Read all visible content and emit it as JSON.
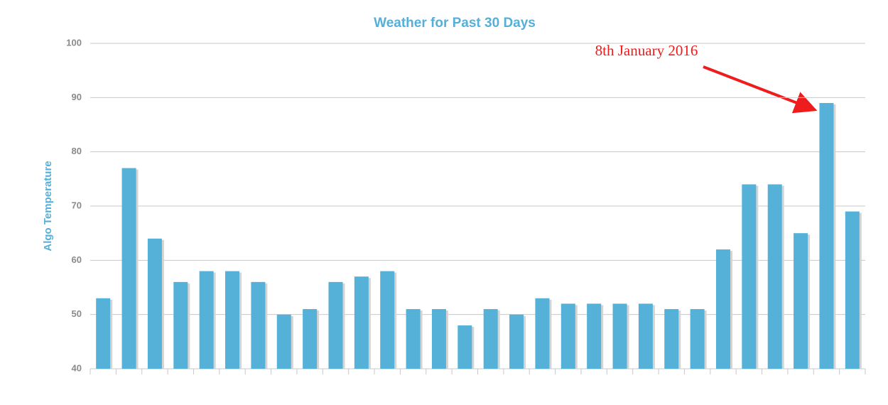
{
  "chart_data": {
    "type": "bar",
    "title": "Weather for Past 30 Days",
    "y_label": "Algo Temperature",
    "annotation": "8th January 2016",
    "categories": [
      null,
      null,
      null,
      null,
      null,
      null,
      null,
      null,
      null,
      null,
      null,
      null,
      null,
      null,
      null,
      null,
      null,
      null,
      null,
      null,
      null,
      null,
      null,
      null,
      null,
      null,
      null,
      null,
      null,
      null
    ],
    "values": [
      53,
      77,
      64,
      56,
      58,
      58,
      56,
      50,
      51,
      56,
      57,
      58,
      51,
      51,
      48,
      51,
      50,
      53,
      52,
      52,
      52,
      52,
      51,
      51,
      62,
      74,
      74,
      65,
      89,
      69
    ],
    "color": "#56b1d8",
    "ylim": [
      40,
      100
    ],
    "yticks": [
      40,
      50,
      60,
      70,
      80,
      90,
      100
    ],
    "grid": true
  }
}
